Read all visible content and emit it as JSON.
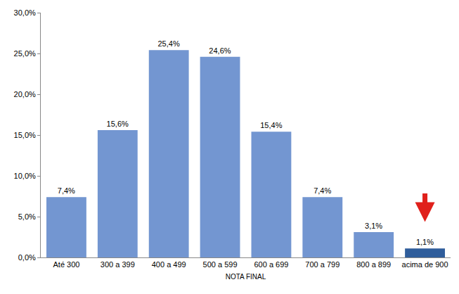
{
  "chart_data": {
    "type": "bar",
    "x_label": "NOTA FINAL",
    "categories": [
      "Até 300",
      "300 a 399",
      "400 a 499",
      "500 a 599",
      "600 a 699",
      "700 a 799",
      "800 a 899",
      "acima de 900"
    ],
    "values": [
      7.4,
      15.6,
      25.4,
      24.6,
      15.4,
      7.4,
      3.1,
      1.1
    ],
    "value_labels": [
      "7,4%",
      "15,6%",
      "25,4%",
      "24,6%",
      "15,4%",
      "7,4%",
      "3,1%",
      "1,1%"
    ],
    "colors": [
      "#7396d1",
      "#7396d1",
      "#7396d1",
      "#7396d1",
      "#7396d1",
      "#7396d1",
      "#7396d1",
      "#2f5d9b"
    ],
    "ylim": [
      0,
      30
    ],
    "yticks": [
      {
        "value": 0,
        "label": "0,0%"
      },
      {
        "value": 5,
        "label": "5,0%"
      },
      {
        "value": 10,
        "label": "10,0%"
      },
      {
        "value": 15,
        "label": "15,0%"
      },
      {
        "value": 20,
        "label": "20,0%"
      },
      {
        "value": 25,
        "label": "25,0%"
      },
      {
        "value": 30,
        "label": "30,0%"
      }
    ],
    "grid": false,
    "data_labels": true
  }
}
